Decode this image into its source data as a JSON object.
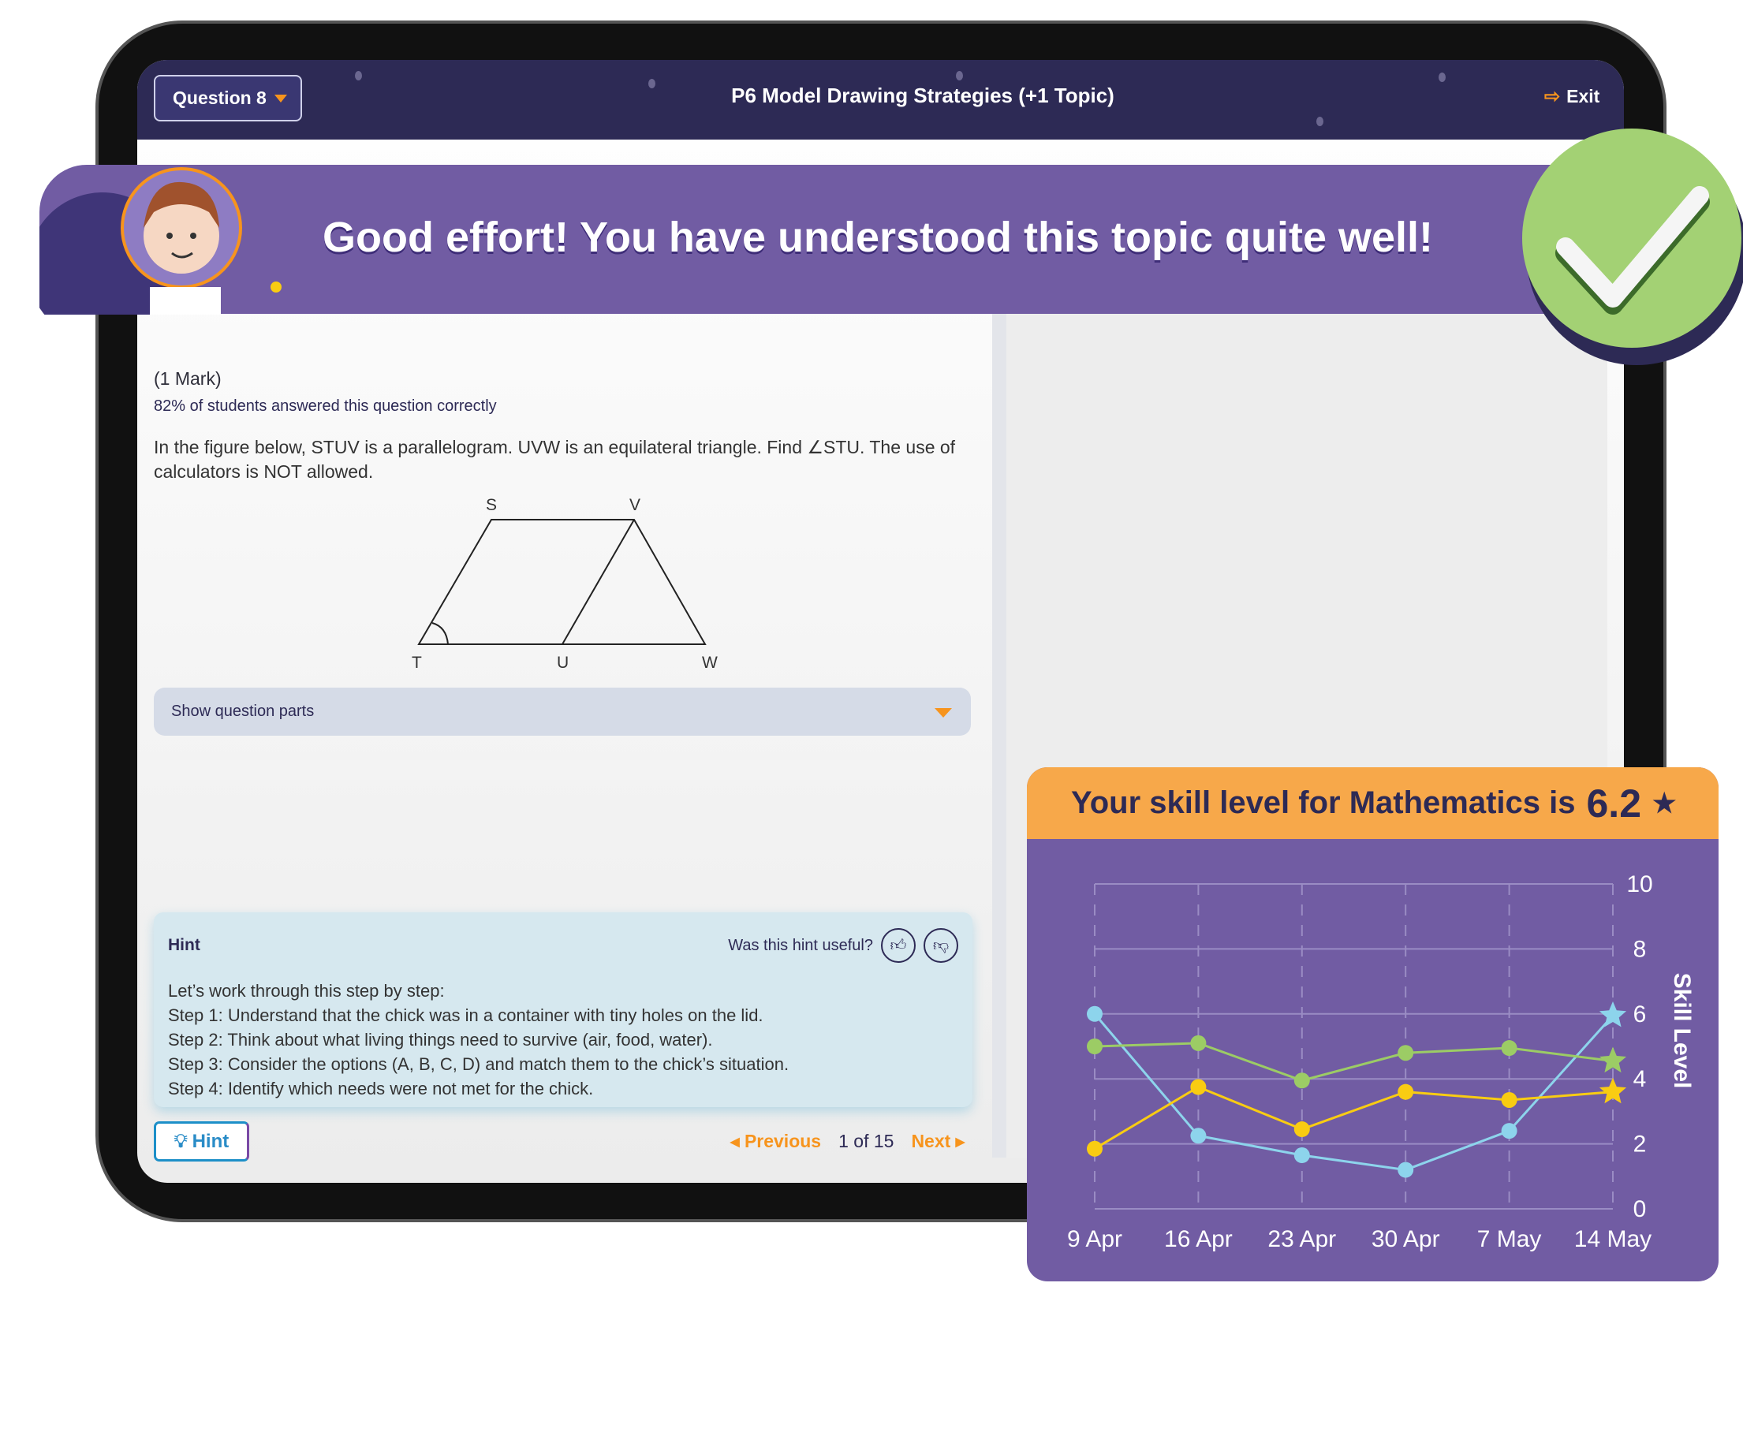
{
  "header": {
    "question_label": "Question 8",
    "title": "P6 Model Drawing Strategies (+1 Topic)",
    "exit_label": "Exit"
  },
  "banner": {
    "message": "Good effort! You have understood this topic quite well!",
    "icon": "check-icon"
  },
  "question": {
    "marks": "(1 Mark)",
    "stat": "82% of students answered this question correctly",
    "text": "In the figure below, STUV is a parallelogram. UVW is an equilateral triangle. Find ∠STU. The use of calculators is NOT allowed.",
    "figure_labels": {
      "S": "S",
      "V": "V",
      "T": "T",
      "U": "U",
      "W": "W"
    },
    "show_parts": "Show question parts"
  },
  "hint": {
    "title": "Hint",
    "useful_prompt": "Was this hint useful?",
    "lines": [
      "Let’s work through this step by step:",
      "Step 1: Understand that the chick was in a container with tiny holes on the lid.",
      "Step 2: Think about what living things need to survive (air, food, water).",
      "Step 3: Consider the options (A, B, C, D) and match them to the chick’s situation.",
      "Step 4: Identify which needs were not met for the chick."
    ],
    "button_label": "Hint"
  },
  "pager": {
    "previous": "Previous",
    "position": "1 of 15",
    "next": "Next"
  },
  "skill_card": {
    "title": "Your skill level for Mathematics is",
    "value": "6.2"
  },
  "colors": {
    "accent": "#f7941d",
    "navy": "#2d2a55",
    "purple": "#715ca3",
    "orange": "#f7a84a"
  },
  "chart_data": {
    "type": "line",
    "categories": [
      "9 Apr",
      "16 Apr",
      "23 Apr",
      "30 Apr",
      "7 May",
      "14 May"
    ],
    "ylabel": "Skill Level",
    "ylim": [
      0,
      10
    ],
    "yticks": [
      "0",
      "2",
      "4",
      "6",
      "8",
      "10"
    ],
    "grid": true,
    "series": [
      {
        "color": "#8dd4ec",
        "values": [
          6.0,
          2.25,
          1.65,
          1.2,
          2.4,
          5.95
        ]
      },
      {
        "color": "#9ccc65",
        "values": [
          5.0,
          5.1,
          3.95,
          4.8,
          4.95,
          4.55
        ]
      },
      {
        "color": "#f9cc12",
        "values": [
          1.85,
          3.75,
          2.45,
          3.6,
          3.35,
          3.6
        ]
      }
    ]
  }
}
